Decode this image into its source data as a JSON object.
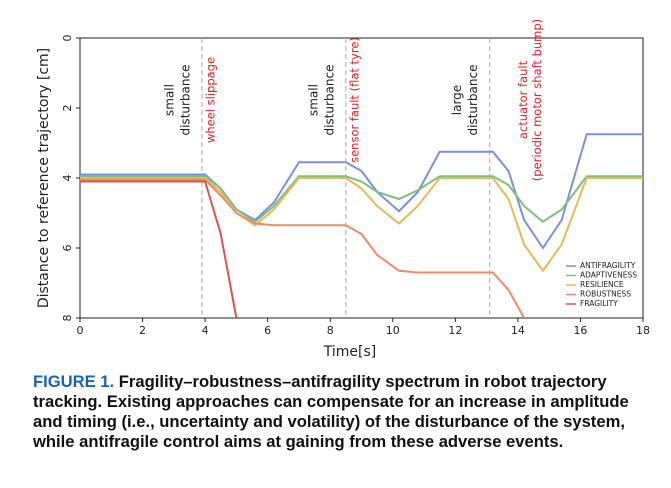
{
  "chart_data": {
    "type": "line",
    "xlabel": "Time[s]",
    "ylabel": "Distance to reference trajectory [cm]",
    "x": [
      0,
      4,
      4.5,
      5,
      5.6,
      6.2,
      7,
      8.5,
      9,
      9.5,
      10.2,
      10.8,
      11.5,
      13.2,
      13.7,
      14.2,
      14.8,
      15.4,
      16.2,
      18
    ],
    "series": [
      {
        "name": "ANTIFRAGILITY",
        "color": "#7b8fe0",
        "values": [
          3.9,
          3.9,
          4.3,
          4.9,
          5.2,
          4.7,
          3.55,
          3.55,
          3.8,
          4.4,
          4.95,
          4.4,
          3.25,
          3.25,
          3.8,
          5.2,
          6.0,
          5.2,
          2.75,
          2.75
        ]
      },
      {
        "name": "ADAPTIVENESS",
        "color": "#7fbf7b",
        "values": [
          3.95,
          3.95,
          4.3,
          4.9,
          5.25,
          4.8,
          3.95,
          3.95,
          4.1,
          4.4,
          4.6,
          4.35,
          3.95,
          3.95,
          4.2,
          4.8,
          5.25,
          4.9,
          3.95,
          3.95
        ]
      },
      {
        "name": "RESILIENCE",
        "color": "#e6b95a",
        "values": [
          4.0,
          4.0,
          4.4,
          5.0,
          5.35,
          4.9,
          4.0,
          4.0,
          4.3,
          4.8,
          5.3,
          4.8,
          4.0,
          4.0,
          4.6,
          5.9,
          6.65,
          5.9,
          4.0,
          4.0
        ]
      },
      {
        "name": "ROBUSTNESS",
        "color": "#f08a6a",
        "values": [
          4.05,
          4.05,
          4.5,
          5.0,
          5.3,
          5.35,
          5.35,
          5.35,
          5.6,
          6.2,
          6.65,
          6.7,
          6.7,
          6.7,
          7.2,
          8,
          null,
          null,
          null,
          null
        ]
      },
      {
        "name": "FRAGILITY",
        "color": "#d9534f",
        "values": [
          4.1,
          4.1,
          5.6,
          8,
          null,
          null,
          null,
          null,
          null,
          null,
          null,
          null,
          null,
          null,
          null,
          null,
          null,
          null,
          null,
          null
        ]
      }
    ],
    "xlim": [
      0,
      18
    ],
    "xticks": [
      0,
      2,
      4,
      6,
      8,
      10,
      12,
      14,
      16,
      18
    ],
    "ylim": [
      0,
      8
    ],
    "yticks": [
      0,
      2,
      4,
      6,
      8
    ],
    "y_inverted": true,
    "legend": "lower right",
    "events": [
      {
        "x": 3.9,
        "disturbance": [
          "small",
          "disturbance"
        ],
        "fault": [
          "wheel slippage"
        ]
      },
      {
        "x": 8.5,
        "disturbance": [
          "small",
          "disturbance"
        ],
        "fault": [
          "sensor fault  (flat tyre)"
        ]
      },
      {
        "x": 13.1,
        "disturbance": [
          "large",
          "disturbance"
        ],
        "fault": [
          "actuator fault",
          "(periodic motor shaft bump)"
        ]
      }
    ]
  },
  "caption": {
    "label": "FIGURE 1.",
    "text": "Fragility–robustness–antifragility spectrum in robot trajectory tracking. Existing approaches can compensate for an increase in amplitude and timing (i.e., uncertainty and volatility) of the disturbance of the system, while antifragile control aims at gaining from these adverse events."
  }
}
